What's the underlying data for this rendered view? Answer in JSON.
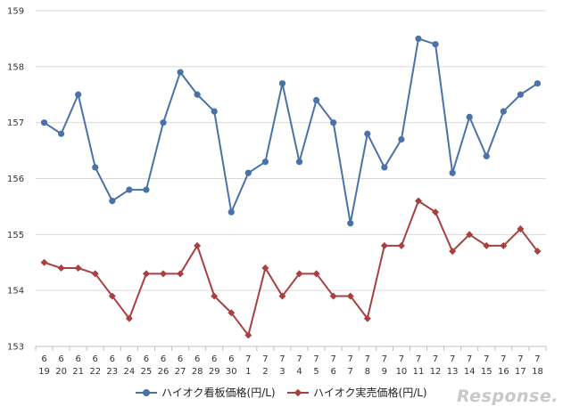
{
  "chart_data": {
    "type": "line",
    "categories": [
      [
        "6",
        "19"
      ],
      [
        "6",
        "20"
      ],
      [
        "6",
        "21"
      ],
      [
        "6",
        "22"
      ],
      [
        "6",
        "23"
      ],
      [
        "6",
        "24"
      ],
      [
        "6",
        "25"
      ],
      [
        "6",
        "26"
      ],
      [
        "6",
        "27"
      ],
      [
        "6",
        "28"
      ],
      [
        "6",
        "29"
      ],
      [
        "6",
        "30"
      ],
      [
        "7",
        "1"
      ],
      [
        "7",
        "2"
      ],
      [
        "7",
        "3"
      ],
      [
        "7",
        "4"
      ],
      [
        "7",
        "5"
      ],
      [
        "7",
        "6"
      ],
      [
        "7",
        "7"
      ],
      [
        "7",
        "8"
      ],
      [
        "7",
        "9"
      ],
      [
        "7",
        "10"
      ],
      [
        "7",
        "11"
      ],
      [
        "7",
        "12"
      ],
      [
        "7",
        "13"
      ],
      [
        "7",
        "14"
      ],
      [
        "7",
        "15"
      ],
      [
        "7",
        "16"
      ],
      [
        "7",
        "17"
      ],
      [
        "7",
        "18"
      ]
    ],
    "ylim": [
      153,
      159
    ],
    "yticks": [
      153,
      154,
      155,
      156,
      157,
      158,
      159
    ],
    "grid": true,
    "legend_position": "bottom",
    "series": [
      {
        "name": "ハイオク看板価格(円/L)",
        "color": "#4a72a8",
        "marker": "circle",
        "values": [
          157.0,
          156.8,
          157.5,
          156.2,
          155.6,
          155.8,
          155.8,
          157.0,
          157.9,
          157.5,
          157.2,
          155.4,
          156.1,
          156.3,
          157.7,
          156.3,
          157.4,
          157.0,
          155.2,
          156.8,
          156.2,
          156.7,
          158.5,
          158.4,
          156.1,
          157.1,
          156.4,
          157.2,
          157.5,
          157.7
        ]
      },
      {
        "name": "ハイオク実売価格(円/L)",
        "color": "#a84040",
        "marker": "diamond",
        "values": [
          154.5,
          154.4,
          154.4,
          154.3,
          153.9,
          153.5,
          154.3,
          154.3,
          154.3,
          154.8,
          153.9,
          153.6,
          153.2,
          154.4,
          153.9,
          154.3,
          154.3,
          153.9,
          153.9,
          153.5,
          154.8,
          154.8,
          155.6,
          155.4,
          154.7,
          155.0,
          154.8,
          154.8,
          155.1,
          154.7
        ]
      }
    ]
  },
  "watermark": "Response."
}
